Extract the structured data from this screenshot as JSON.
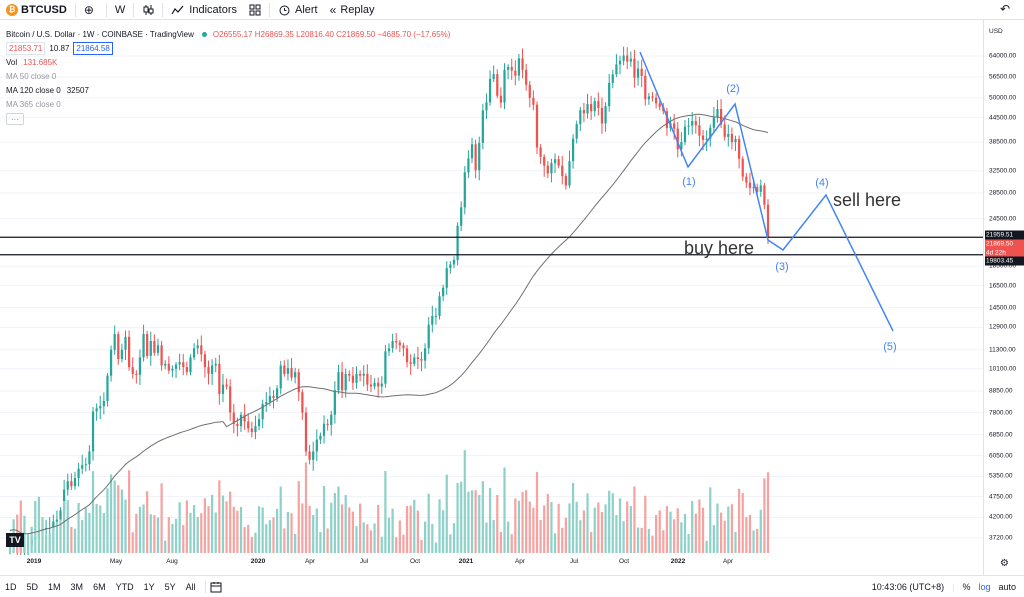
{
  "toolbar": {
    "symbol_badge": "₿",
    "symbol": "BTCUSD",
    "add_icon": "⊕",
    "interval": "W",
    "chart_type_icon": "candles-icon",
    "indicators_label": "Indicators",
    "templates_icon": "grid-icon",
    "alert_label": "Alert",
    "replay_label": "Replay",
    "undo_icon": "↶"
  },
  "legend": {
    "title": "Bitcoin / U.S. Dollar · 1W · COINBASE · TradingView",
    "ohlc": "O26555.17 H26869.35 L20816.40 C21869.50 −4685.70 (−17.65%)",
    "sell_price": "21853.71",
    "spread": "10.87",
    "buy_price": "21864.58",
    "volume_label": "Vol",
    "volume_value": "131.685K",
    "ma50": "MA 50 close 0",
    "ma120": "MA 120 close 0",
    "ma120_value": "32507",
    "ma365": "MA 365 close 0",
    "settings_icon": "···"
  },
  "colors": {
    "up": "#26a69a",
    "down": "#ef5350",
    "up_vol": "#8ed1c9",
    "down_vol": "#f5a3a1",
    "ma": "#707070",
    "drawing": "#4285f4",
    "line": "#131722"
  },
  "chart_data": {
    "type": "candlestick",
    "title": "Bitcoin / U.S. Dollar · 1W · COINBASE",
    "ylabel": "USD",
    "yscale": "log",
    "ylim": [
      3400,
      74000
    ],
    "x_ticks": [
      "2019",
      "May",
      "Aug",
      "2020",
      "Apr",
      "Jul",
      "Oct",
      "2021",
      "Apr",
      "Jul",
      "Oct",
      "2022",
      "Apr"
    ],
    "y_ticks": [
      "64000.00",
      "56500.00",
      "50000.00",
      "44500.00",
      "38500.00",
      "32500.00",
      "28500.00",
      "24500.00",
      "18500.00",
      "16500.00",
      "14500.00",
      "12900.00",
      "11300.00",
      "10100.00",
      "8850.00",
      "7800.00",
      "6850.00",
      "6050.00",
      "5350.00",
      "4750.00",
      "4200.00",
      "3720.00"
    ],
    "series_close_weekly": [
      3600,
      3650,
      3580,
      3420,
      3520,
      3560,
      3690,
      3740,
      3860,
      3920,
      3950,
      3950,
      4100,
      4150,
      4380,
      4950,
      5200,
      5050,
      5300,
      5600,
      5720,
      5750,
      6200,
      7850,
      8000,
      8100,
      8350,
      9700,
      11300,
      12400,
      10700,
      11300,
      12200,
      10200,
      9800,
      9750,
      10800,
      12400,
      10900,
      11900,
      11100,
      11600,
      10300,
      10400,
      10000,
      10100,
      10350,
      10500,
      10200,
      9900,
      10800,
      11400,
      11600,
      11000,
      10200,
      9800,
      10300,
      10400,
      8700,
      9200,
      9100,
      7800,
      7300,
      7200,
      7700,
      7400,
      7100,
      6950,
      7200,
      7500,
      8200,
      8300,
      8600,
      8500,
      9000,
      10300,
      9800,
      10150,
      9600,
      9900,
      8800,
      7800,
      6200,
      5900,
      6200,
      6650,
      6800,
      7300,
      7250,
      7700,
      8900,
      9900,
      8900,
      9800,
      9700,
      9300,
      9800,
      9700,
      9800,
      9200,
      9100,
      9300,
      9100,
      9250,
      11200,
      11400,
      11900,
      11800,
      11600,
      11400,
      10500,
      10400,
      10800,
      10700,
      10600,
      11400,
      13100,
      13800,
      13800,
      15500,
      16300,
      18300,
      18700,
      19200,
      23500,
      26200,
      32200,
      35000,
      38000,
      32600,
      38300,
      46400,
      48700,
      55900,
      57500,
      50600,
      48600,
      59000,
      60000,
      58700,
      57000,
      63100,
      59000,
      54000,
      50000,
      48000,
      37300,
      35300,
      33500,
      32000,
      34000,
      34800,
      33500,
      31500,
      29800,
      34400,
      39300,
      42800,
      46500,
      45600,
      48200,
      46200,
      49000,
      47100,
      43000,
      47600,
      54600,
      57400,
      60900,
      62200,
      64200,
      61900,
      63000,
      56300,
      59400,
      56900,
      49600,
      50400,
      50100,
      48400,
      47400,
      46200,
      41800,
      43000,
      41700,
      36900,
      38500,
      42200,
      42400,
      43600,
      42500,
      40000,
      39000,
      39300,
      41900,
      44500,
      46800,
      42700,
      39700,
      40400,
      38500,
      39200,
      34900,
      31400,
      30300,
      29400,
      29500,
      28700,
      29800,
      26600,
      21870
    ]
  },
  "drawings": {
    "wave_labels": [
      "(1)",
      "(2)",
      "(3)",
      "(4)",
      "(5)"
    ],
    "sell_text": "sell here",
    "buy_text": "buy here"
  },
  "price_axis": {
    "currency": "USD",
    "upper_line_label": "21959.51",
    "last_price_label": "21869.50",
    "countdown_label": "4d 22h",
    "lower_line_label": "19803.45",
    "gear_icon": "⚙"
  },
  "bottombar": {
    "ranges": [
      "1D",
      "5D",
      "1M",
      "3M",
      "6M",
      "YTD",
      "1Y",
      "5Y",
      "All"
    ],
    "calendar_icon": "calendar-icon",
    "time": "10:43:06 (UTC+8)",
    "percent": "%",
    "log": "log",
    "auto": "auto"
  },
  "watermark": "TV"
}
